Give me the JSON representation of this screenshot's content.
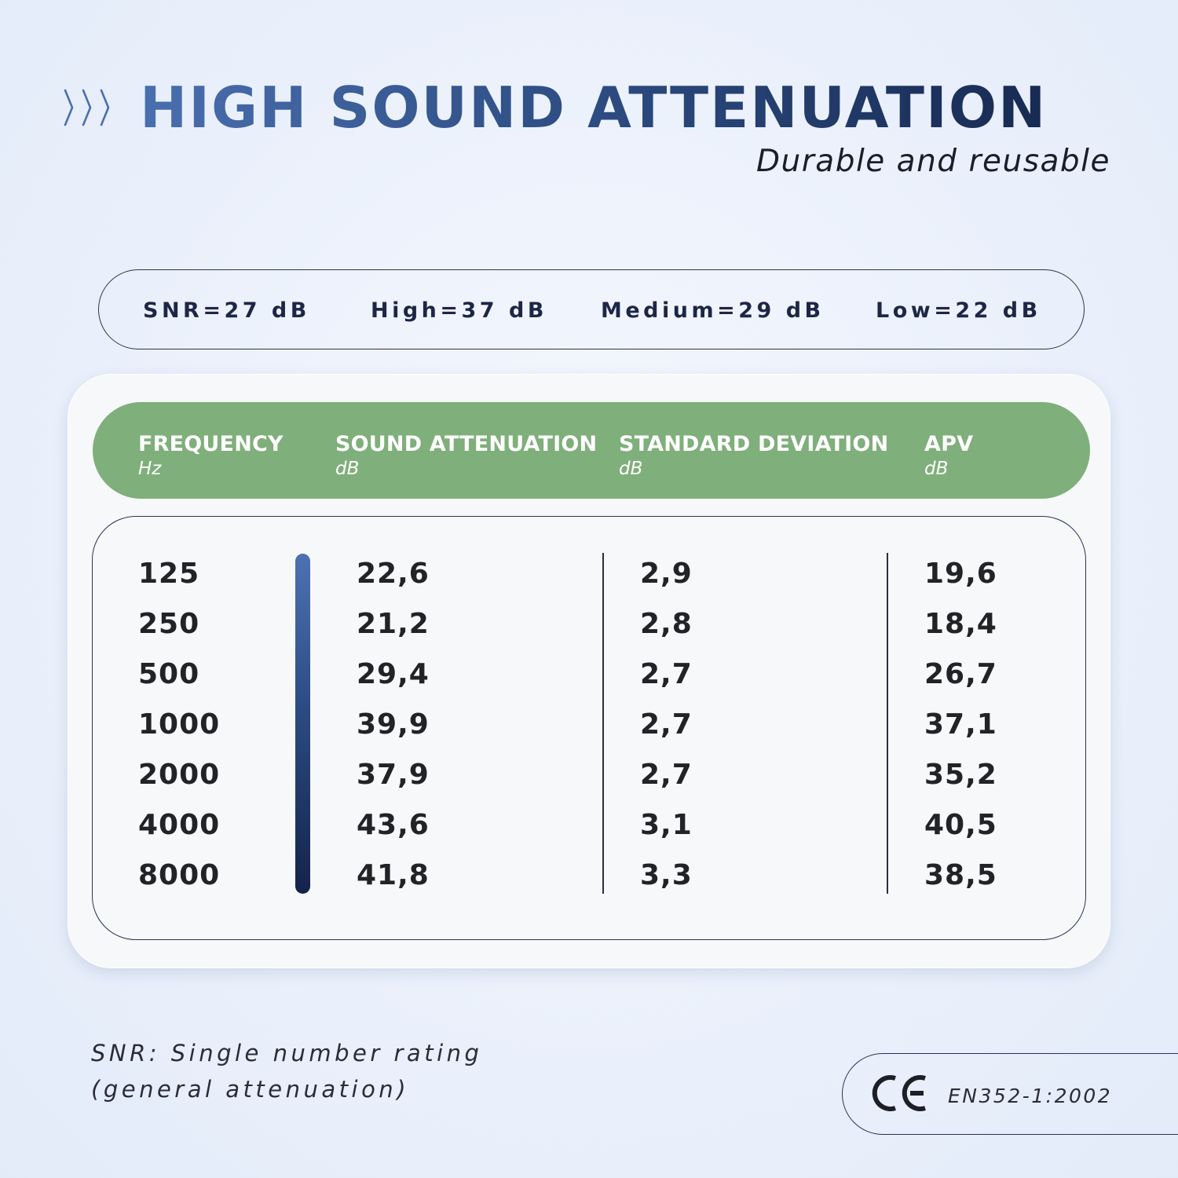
{
  "title": "HIGH SOUND ATTENUATION",
  "subtitle": "Durable and reusable",
  "ratings": [
    "SNR=27 dB",
    "High=37 dB",
    "Medium=29 dB",
    "Low=22 dB"
  ],
  "table": {
    "headers": [
      {
        "label": "FREQUENCY",
        "unit": "Hz"
      },
      {
        "label": "SOUND ATTENUATION",
        "unit": "dB"
      },
      {
        "label": "STANDARD DEVIATION",
        "unit": "dB"
      },
      {
        "label": "APV",
        "unit": "dB"
      }
    ],
    "frequency": [
      "125",
      "250",
      "500",
      "1000",
      "2000",
      "4000",
      "8000"
    ],
    "attenuation": [
      "22,6",
      "21,2",
      "29,4",
      "39,9",
      "37,9",
      "43,6",
      "41,8"
    ],
    "std_deviation": [
      "2,9",
      "2,8",
      "2,7",
      "2,7",
      "2,7",
      "3,1",
      "3,3"
    ],
    "apv": [
      "19,6",
      "18,4",
      "26,7",
      "37,1",
      "35,2",
      "40,5",
      "38,5"
    ]
  },
  "note": {
    "line1": "SNR: Single number rating",
    "line2": "(general attenuation)"
  },
  "certification": {
    "mark_icon": "ce-mark-icon",
    "standard": "EN352-1:2002"
  },
  "colors": {
    "title_gradient_start": "#4a6fae",
    "title_gradient_end": "#172a52",
    "header_green": "#7faf7a",
    "bar_top": "#4d72b3",
    "bar_bottom": "#14234a"
  }
}
